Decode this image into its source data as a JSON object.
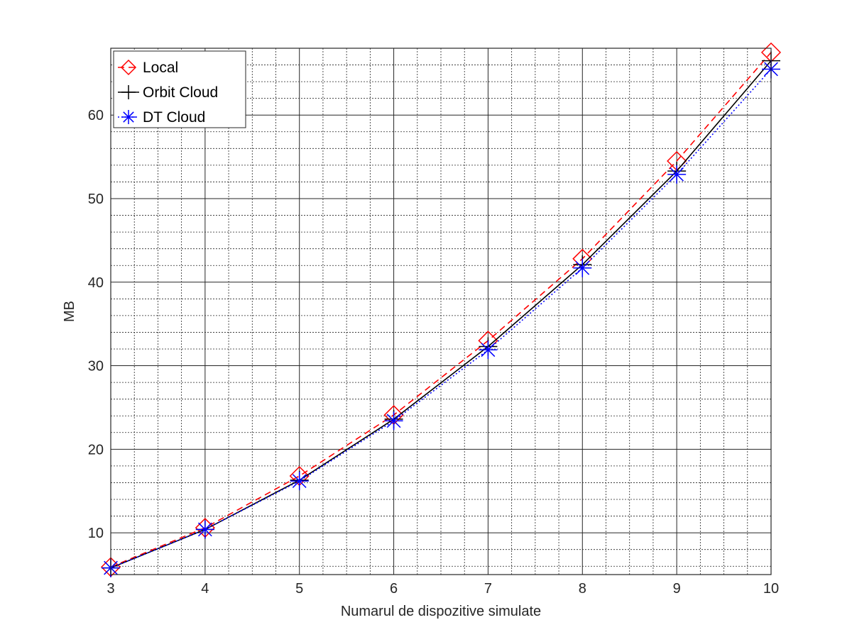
{
  "chart_data": {
    "type": "line",
    "title": "",
    "xlabel": "Numarul de dispozitive simulate",
    "ylabel": "MB",
    "x": [
      3,
      4,
      5,
      6,
      7,
      8,
      9,
      10
    ],
    "xlim": [
      3,
      10
    ],
    "ylim": [
      5,
      68
    ],
    "xticks": [
      3,
      4,
      5,
      6,
      7,
      8,
      9,
      10
    ],
    "yticks": [
      10,
      20,
      30,
      40,
      50,
      60
    ],
    "grid": true,
    "minor_grid": true,
    "legend_position": "top-left",
    "series": [
      {
        "name": "Local",
        "values": [
          5.9,
          10.6,
          16.8,
          24.1,
          33.0,
          42.8,
          54.5,
          67.5
        ],
        "color": "#ff0000",
        "line_style": "dashed",
        "marker": "diamond"
      },
      {
        "name": "Orbit Cloud",
        "values": [
          5.8,
          10.4,
          16.3,
          23.6,
          32.3,
          42.1,
          53.3,
          66.5
        ],
        "color": "#000000",
        "line_style": "solid",
        "marker": "plus"
      },
      {
        "name": "DT Cloud",
        "values": [
          5.8,
          10.4,
          16.2,
          23.4,
          31.9,
          41.7,
          52.9,
          65.5
        ],
        "color": "#0000ff",
        "line_style": "dotted",
        "marker": "asterisk"
      }
    ]
  }
}
